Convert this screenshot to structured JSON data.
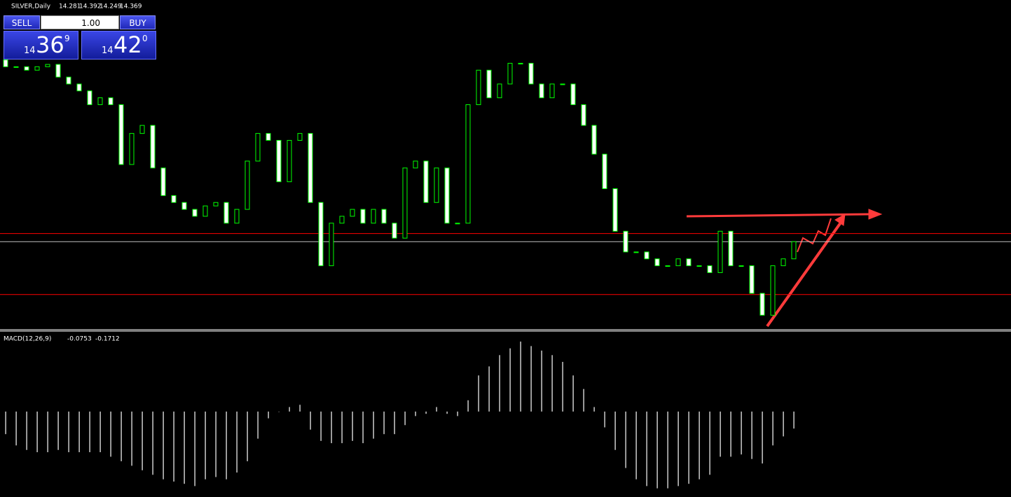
{
  "chart_data": [
    {
      "type": "candlestick",
      "title": "SILVER,Daily",
      "header_prices": [
        14.281,
        14.392,
        14.249,
        14.369
      ],
      "open": [
        15.95,
        15.89,
        15.89,
        15.86,
        15.89,
        15.91,
        15.8,
        15.74,
        15.68,
        15.56,
        15.62,
        15.56,
        15.04,
        15.31,
        15.38,
        15.01,
        14.77,
        14.71,
        14.65,
        14.59,
        14.68,
        14.71,
        14.53,
        14.65,
        15.07,
        15.31,
        15.25,
        14.89,
        15.25,
        15.31,
        14.71,
        14.16,
        14.53,
        14.59,
        14.65,
        14.53,
        14.65,
        14.53,
        14.4,
        15.01,
        15.07,
        14.71,
        15.01,
        14.53,
        14.53,
        15.56,
        15.86,
        15.62,
        15.74,
        15.92,
        15.92,
        15.74,
        15.62,
        15.74,
        15.74,
        15.56,
        15.38,
        15.13,
        14.83,
        14.46,
        14.28,
        14.28,
        14.22,
        14.16,
        14.16,
        14.22,
        14.16,
        14.16,
        14.1,
        14.46,
        14.16,
        14.16,
        13.92,
        13.73,
        14.16,
        14.22
      ],
      "close": [
        15.89,
        15.89,
        15.86,
        15.89,
        15.91,
        15.8,
        15.74,
        15.68,
        15.56,
        15.62,
        15.56,
        15.04,
        15.31,
        15.38,
        15.01,
        14.77,
        14.71,
        14.65,
        14.59,
        14.68,
        14.71,
        14.53,
        14.65,
        15.07,
        15.31,
        15.25,
        14.89,
        15.25,
        15.31,
        14.71,
        14.16,
        14.53,
        14.59,
        14.65,
        14.53,
        14.65,
        14.53,
        14.4,
        15.01,
        15.07,
        14.71,
        15.01,
        14.53,
        14.53,
        15.56,
        15.86,
        15.62,
        15.74,
        15.92,
        15.92,
        15.74,
        15.62,
        15.74,
        15.74,
        15.56,
        15.38,
        15.13,
        14.83,
        14.46,
        14.28,
        14.28,
        14.22,
        14.16,
        14.16,
        14.22,
        14.16,
        14.16,
        14.1,
        14.46,
        14.16,
        14.16,
        13.92,
        13.73,
        14.16,
        14.22,
        14.369
      ],
      "levels": [
        14.44,
        13.91
      ],
      "bid": 14.369,
      "ylim": [
        13.61,
        16.47
      ],
      "colors": {
        "up": "#000000",
        "down": "#ffffff",
        "outline": "#00ff00",
        "level": "#ff0000",
        "bid": "#c0c0c0"
      }
    },
    {
      "type": "bar",
      "title": "MACD(12,26,9)",
      "readings": [
        -0.0753,
        -0.1712
      ],
      "values": [
        -0.1,
        -0.15,
        -0.17,
        -0.18,
        -0.18,
        -0.17,
        -0.18,
        -0.18,
        -0.18,
        -0.18,
        -0.2,
        -0.22,
        -0.24,
        -0.26,
        -0.28,
        -0.3,
        -0.31,
        -0.32,
        -0.33,
        -0.3,
        -0.29,
        -0.3,
        -0.27,
        -0.22,
        -0.12,
        -0.03,
        0.0,
        0.02,
        0.03,
        -0.08,
        -0.13,
        -0.14,
        -0.14,
        -0.13,
        -0.14,
        -0.12,
        -0.1,
        -0.1,
        -0.06,
        -0.02,
        -0.01,
        0.02,
        -0.01,
        -0.02,
        0.05,
        0.16,
        0.2,
        0.25,
        0.28,
        0.31,
        0.29,
        0.27,
        0.25,
        0.22,
        0.16,
        0.1,
        0.02,
        -0.07,
        -0.17,
        -0.25,
        -0.3,
        -0.33,
        -0.34,
        -0.34,
        -0.33,
        -0.32,
        -0.3,
        -0.28,
        -0.2,
        -0.2,
        -0.19,
        -0.21,
        -0.23,
        -0.15,
        -0.11,
        -0.0753
      ],
      "ylim": [
        -0.366,
        0.347
      ],
      "color": "#ffffff"
    }
  ],
  "trade_panel": {
    "sell": "SELL",
    "buy": "BUY",
    "lot": "1.00",
    "bid": {
      "big": "14",
      "main": "36",
      "small": "9"
    },
    "ask": {
      "big": "14",
      "main": "42",
      "small": "0"
    }
  }
}
